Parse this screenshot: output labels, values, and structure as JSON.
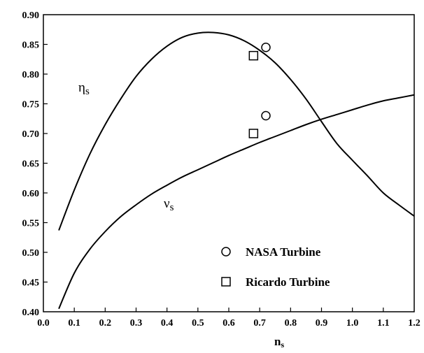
{
  "chart_data": {
    "type": "line",
    "xlabel": "n",
    "xlabel_subscript": "s",
    "ylabel": "",
    "xlim": [
      0.0,
      1.2
    ],
    "ylim": [
      0.4,
      0.9
    ],
    "x_ticks": [
      "0.0",
      "0.1",
      "0.2",
      "0.3",
      "0.4",
      "0.5",
      "0.6",
      "0.7",
      "0.8",
      "0.9",
      "1.0",
      "1.1",
      "1.2"
    ],
    "y_ticks": [
      "0.40",
      "0.45",
      "0.50",
      "0.55",
      "0.60",
      "0.65",
      "0.70",
      "0.75",
      "0.80",
      "0.85",
      "0.90"
    ],
    "grid": false,
    "series": [
      {
        "name": "η",
        "name_subscript": "s",
        "x": [
          0.05,
          0.1,
          0.15,
          0.2,
          0.25,
          0.3,
          0.35,
          0.4,
          0.45,
          0.5,
          0.55,
          0.6,
          0.65,
          0.7,
          0.75,
          0.8,
          0.85,
          0.9,
          0.95,
          1.0,
          1.05,
          1.1,
          1.15,
          1.2
        ],
        "y": [
          0.537,
          0.605,
          0.665,
          0.715,
          0.758,
          0.796,
          0.825,
          0.847,
          0.862,
          0.869,
          0.87,
          0.866,
          0.856,
          0.84,
          0.819,
          0.791,
          0.758,
          0.72,
          0.683,
          0.655,
          0.628,
          0.6,
          0.58,
          0.561
        ]
      },
      {
        "name": "ν",
        "name_subscript": "s",
        "x": [
          0.05,
          0.1,
          0.15,
          0.2,
          0.25,
          0.3,
          0.35,
          0.4,
          0.45,
          0.5,
          0.55,
          0.6,
          0.65,
          0.7,
          0.75,
          0.8,
          0.85,
          0.9,
          0.95,
          1.0,
          1.05,
          1.1,
          1.15,
          1.2
        ],
        "y": [
          0.405,
          0.465,
          0.505,
          0.535,
          0.56,
          0.58,
          0.598,
          0.613,
          0.627,
          0.639,
          0.651,
          0.663,
          0.674,
          0.685,
          0.695,
          0.705,
          0.715,
          0.724,
          0.732,
          0.74,
          0.748,
          0.755,
          0.76,
          0.765
        ]
      }
    ],
    "points": [
      {
        "name": "NASA Turbine",
        "marker": "circle",
        "data": [
          [
            0.72,
            0.845
          ],
          [
            0.72,
            0.73
          ]
        ]
      },
      {
        "name": "Ricardo Turbine",
        "marker": "square",
        "data": [
          [
            0.68,
            0.831
          ],
          [
            0.68,
            0.7
          ]
        ]
      }
    ],
    "legend_position": "bottom-right"
  }
}
